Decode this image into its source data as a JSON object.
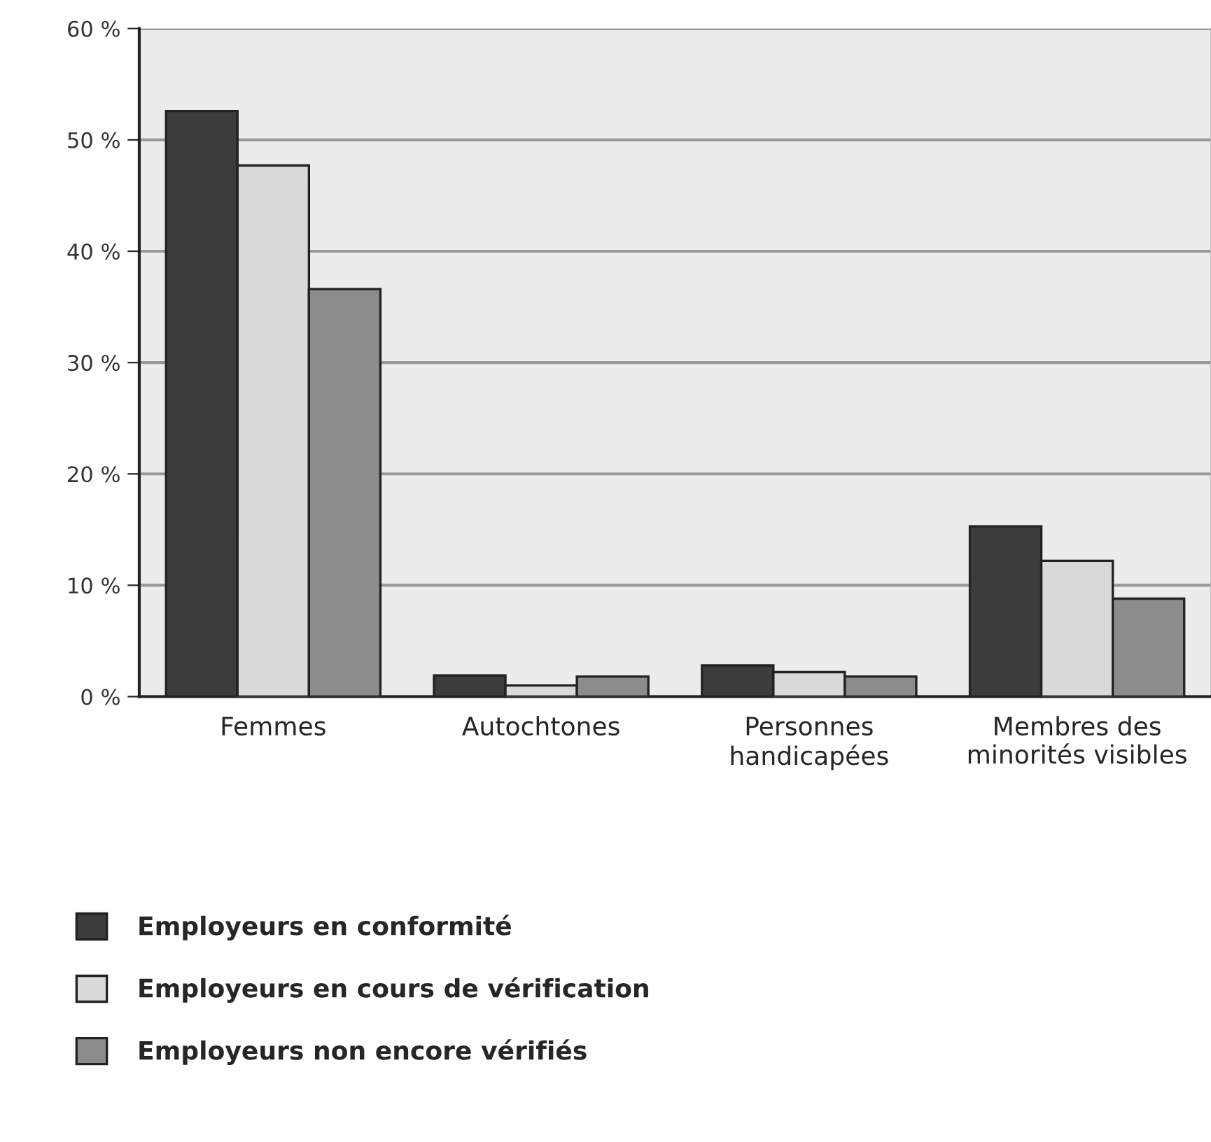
{
  "chart_data": {
    "type": "bar",
    "categories": [
      "Femmes",
      "Autochtones",
      "Personnes\nhandicapées",
      "Membres des\nminorités visibles"
    ],
    "series": [
      {
        "name": "Employeurs en conformité",
        "color": "#3c3c3c",
        "values": [
          52.6,
          1.9,
          2.8,
          15.3
        ]
      },
      {
        "name": "Employeurs en cours de vérification",
        "color": "#d9d9d9",
        "values": [
          47.7,
          1.0,
          2.2,
          12.2
        ]
      },
      {
        "name": "Employeurs non encore vérifiés",
        "color": "#8c8c8c",
        "values": [
          36.6,
          1.8,
          1.8,
          8.8
        ]
      }
    ],
    "ylim": [
      0,
      60
    ],
    "yticks": [
      {
        "value": 0,
        "label": "0 %"
      },
      {
        "value": 10,
        "label": "10 %"
      },
      {
        "value": 20,
        "label": "20 %"
      },
      {
        "value": 30,
        "label": "30 %"
      },
      {
        "value": 40,
        "label": "40 %"
      },
      {
        "value": 50,
        "label": "50 %"
      },
      {
        "value": 60,
        "label": "60 %"
      }
    ],
    "grid": "y",
    "legend": "bottom"
  }
}
